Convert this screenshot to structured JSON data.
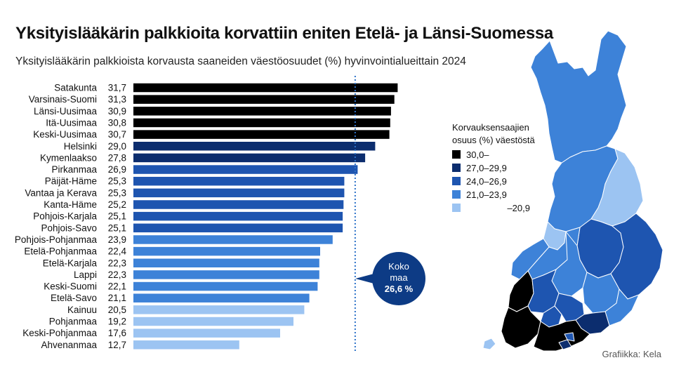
{
  "header": {
    "title": "Yksityislääkärin palkkioita korvattiin eniten Etelä- ja Länsi-Suomessa",
    "subtitle": "Yksityislääkärin palkkioista korvausta saaneiden väestöosuudet (%) hyvinvointialueittain 2024"
  },
  "chart_data": {
    "type": "bar",
    "orientation": "horizontal",
    "categories": [
      "Satakunta",
      "Varsinais-Suomi",
      "Länsi-Uusimaa",
      "Itä-Uusimaa",
      "Keski-Uusimaa",
      "Helsinki",
      "Kymenlaakso",
      "Pirkanmaa",
      "Päijät-Häme",
      "Vantaa ja Kerava",
      "Kanta-Häme",
      "Pohjois-Karjala",
      "Pohjois-Savo",
      "Pohjois-Pohjanmaa",
      "Etelä-Pohjanmaa",
      "Etelä-Karjala",
      "Lappi",
      "Keski-Suomi",
      "Etelä-Savo",
      "Kainuu",
      "Pohjanmaa",
      "Keski-Pohjanmaa",
      "Ahvenanmaa"
    ],
    "values": [
      31.7,
      31.3,
      30.9,
      30.8,
      30.7,
      29.0,
      27.8,
      26.9,
      25.3,
      25.3,
      25.2,
      25.1,
      25.1,
      23.9,
      22.4,
      22.3,
      22.3,
      22.1,
      21.1,
      20.5,
      19.2,
      17.6,
      12.7
    ],
    "value_labels": [
      "31,7",
      "31,3",
      "30,9",
      "30,8",
      "30,7",
      "29,0",
      "27,8",
      "26,9",
      "25,3",
      "25,3",
      "25,2",
      "25,1",
      "25,1",
      "23,9",
      "22,4",
      "22,3",
      "22,3",
      "22,1",
      "21,1",
      "20,5",
      "19,2",
      "17,6",
      "12,7"
    ],
    "reference_line": {
      "value": 26.6,
      "label_lines": [
        "Koko",
        "maa",
        "26,6 %"
      ],
      "style": "dotted"
    },
    "xlim": [
      0,
      32
    ],
    "colors": {
      "class_30_plus": "#000000",
      "class_27_29_9": "#0c2d6e",
      "class_24_26_9": "#1e55b0",
      "class_21_23_9": "#3d82d8",
      "class_under_20_9": "#9cc4f2",
      "reference_line": "#2f73c9",
      "bubble": "#0d3b85"
    },
    "legend": {
      "title_lines": [
        "Korvauksensaajien",
        "osuus (%) väestöstä"
      ],
      "entries": [
        "30,0–",
        "27,0–29,9",
        "24,0–26,9",
        "21,0–23,9",
        "–20,9"
      ],
      "placement": "right"
    }
  },
  "map": {
    "region": "Finland",
    "colors": {
      "black": "#000000",
      "navy": "#0c2d6e",
      "dark_blue": "#1e55b0",
      "blue": "#3d82d8",
      "light_blue": "#9cc4f2"
    }
  },
  "footer": {
    "credit": "Grafiikka: Kela"
  }
}
